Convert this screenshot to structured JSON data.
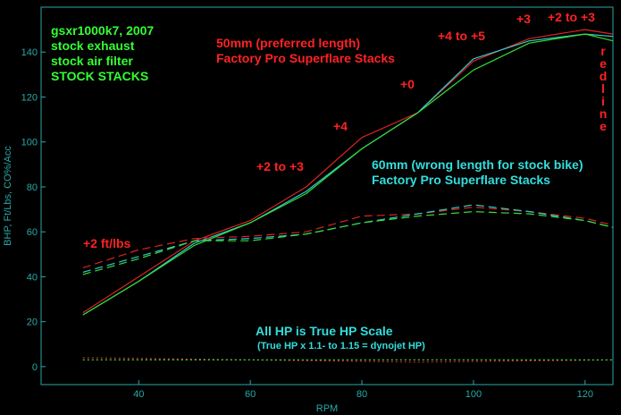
{
  "chart_data": {
    "type": "line",
    "xlabel": "RPM",
    "ylabel": "BHP, Ft/Lbs, CO%/Acc",
    "xlim": [
      22.5,
      125
    ],
    "ylim": [
      -8,
      160
    ],
    "x_ticks": [
      40,
      60,
      80,
      100,
      120
    ],
    "y_ticks": [
      0,
      20,
      40,
      60,
      80,
      100,
      120,
      140
    ],
    "grid": false,
    "colors": {
      "stock": "#33dd33",
      "stacks_50mm": "#dd2222",
      "stacks_60mm": "#33cccc",
      "text_red": "#ff2222",
      "text_cyan": "#33dddd",
      "text_green": "#33ff33",
      "axis": "#2aa8a8"
    },
    "series": [
      {
        "kind": "hp",
        "style": "solid",
        "color": "#dd2222",
        "x": [
          30,
          40,
          50,
          60,
          70,
          80,
          90,
          100,
          110,
          120,
          125
        ],
        "values": [
          24,
          40,
          56,
          65,
          80,
          102,
          113,
          136,
          146,
          150,
          148
        ]
      },
      {
        "kind": "hp",
        "style": "solid",
        "color": "#33cccc",
        "x": [
          30,
          40,
          50,
          60,
          70,
          80,
          90,
          100,
          110,
          120,
          125
        ],
        "values": [
          23,
          38,
          55,
          64,
          78,
          97,
          113,
          137,
          145,
          148,
          147
        ]
      },
      {
        "kind": "hp",
        "style": "solid",
        "color": "#33dd33",
        "x": [
          30,
          40,
          50,
          60,
          70,
          80,
          90,
          100,
          110,
          120,
          125
        ],
        "values": [
          23,
          38,
          54,
          64,
          77,
          97,
          113,
          132,
          144,
          148,
          145
        ]
      },
      {
        "kind": "torque",
        "style": "dashed",
        "color": "#dd2222",
        "x": [
          30,
          40,
          50,
          60,
          70,
          80,
          90,
          100,
          110,
          120,
          125
        ],
        "values": [
          44,
          52,
          57,
          58,
          60,
          67,
          68,
          71,
          69,
          66,
          63
        ]
      },
      {
        "kind": "torque",
        "style": "dashed",
        "color": "#33cccc",
        "x": [
          30,
          40,
          50,
          60,
          70,
          80,
          90,
          100,
          110,
          120,
          125
        ],
        "values": [
          42,
          49,
          56,
          57,
          59,
          64,
          68,
          72,
          69,
          65,
          62
        ]
      },
      {
        "kind": "torque",
        "style": "dashed",
        "color": "#33dd33",
        "x": [
          30,
          40,
          50,
          60,
          70,
          80,
          90,
          100,
          110,
          120,
          125
        ],
        "values": [
          41,
          48,
          56,
          56,
          59,
          64,
          67,
          69,
          68,
          65,
          62
        ]
      },
      {
        "kind": "co",
        "style": "dotted",
        "color": "#dd2222",
        "x": [
          30,
          60,
          90,
          125
        ],
        "values": [
          4,
          3,
          2,
          3
        ]
      },
      {
        "kind": "co",
        "style": "dotted",
        "color": "#33dd33",
        "x": [
          30,
          60,
          90,
          125
        ],
        "values": [
          3,
          3,
          3,
          3
        ]
      }
    ]
  },
  "annotations": {
    "bike_info": [
      "gsxr1000k7, 2007",
      "stock exhaust",
      "stock air filter",
      "STOCK STACKS"
    ],
    "stacks_50mm": [
      "50mm (preferred length)",
      "Factory Pro Superflare Stacks"
    ],
    "stacks_60mm": [
      "60mm (wrong length for stock bike)",
      "Factory Pro Superflare Stacks"
    ],
    "gains": [
      "+3",
      "+2 to +3",
      "+4 to +5",
      "+0",
      "+4",
      "+2 to +3",
      "+2 ft/lbs"
    ],
    "redline": [
      "r",
      "e",
      "d",
      "l",
      "i",
      "n",
      "e"
    ],
    "hp_scale": "All HP is True HP Scale",
    "hp_scale_note": "(True HP x 1.1- to 1.15 = dynojet HP)"
  }
}
